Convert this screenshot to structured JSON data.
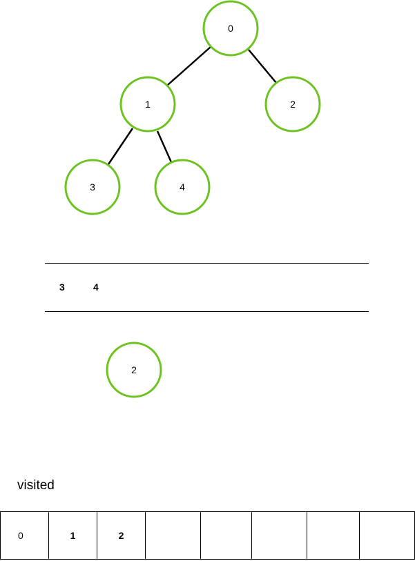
{
  "tree": {
    "nodes": [
      {
        "id": "n0",
        "label": "0"
      },
      {
        "id": "n1",
        "label": "1"
      },
      {
        "id": "n2",
        "label": "2"
      },
      {
        "id": "n3",
        "label": "3"
      },
      {
        "id": "n4",
        "label": "4"
      }
    ],
    "edges": [
      [
        "0",
        "1"
      ],
      [
        "0",
        "2"
      ],
      [
        "1",
        "3"
      ],
      [
        "1",
        "4"
      ]
    ],
    "node_stroke_color": "#6cc21e"
  },
  "queue": {
    "items": [
      "3",
      "4"
    ]
  },
  "current_node": {
    "label": "2"
  },
  "visited": {
    "label": "visited",
    "cells": [
      "0",
      "1",
      "2",
      "",
      "",
      "",
      "",
      ""
    ]
  }
}
